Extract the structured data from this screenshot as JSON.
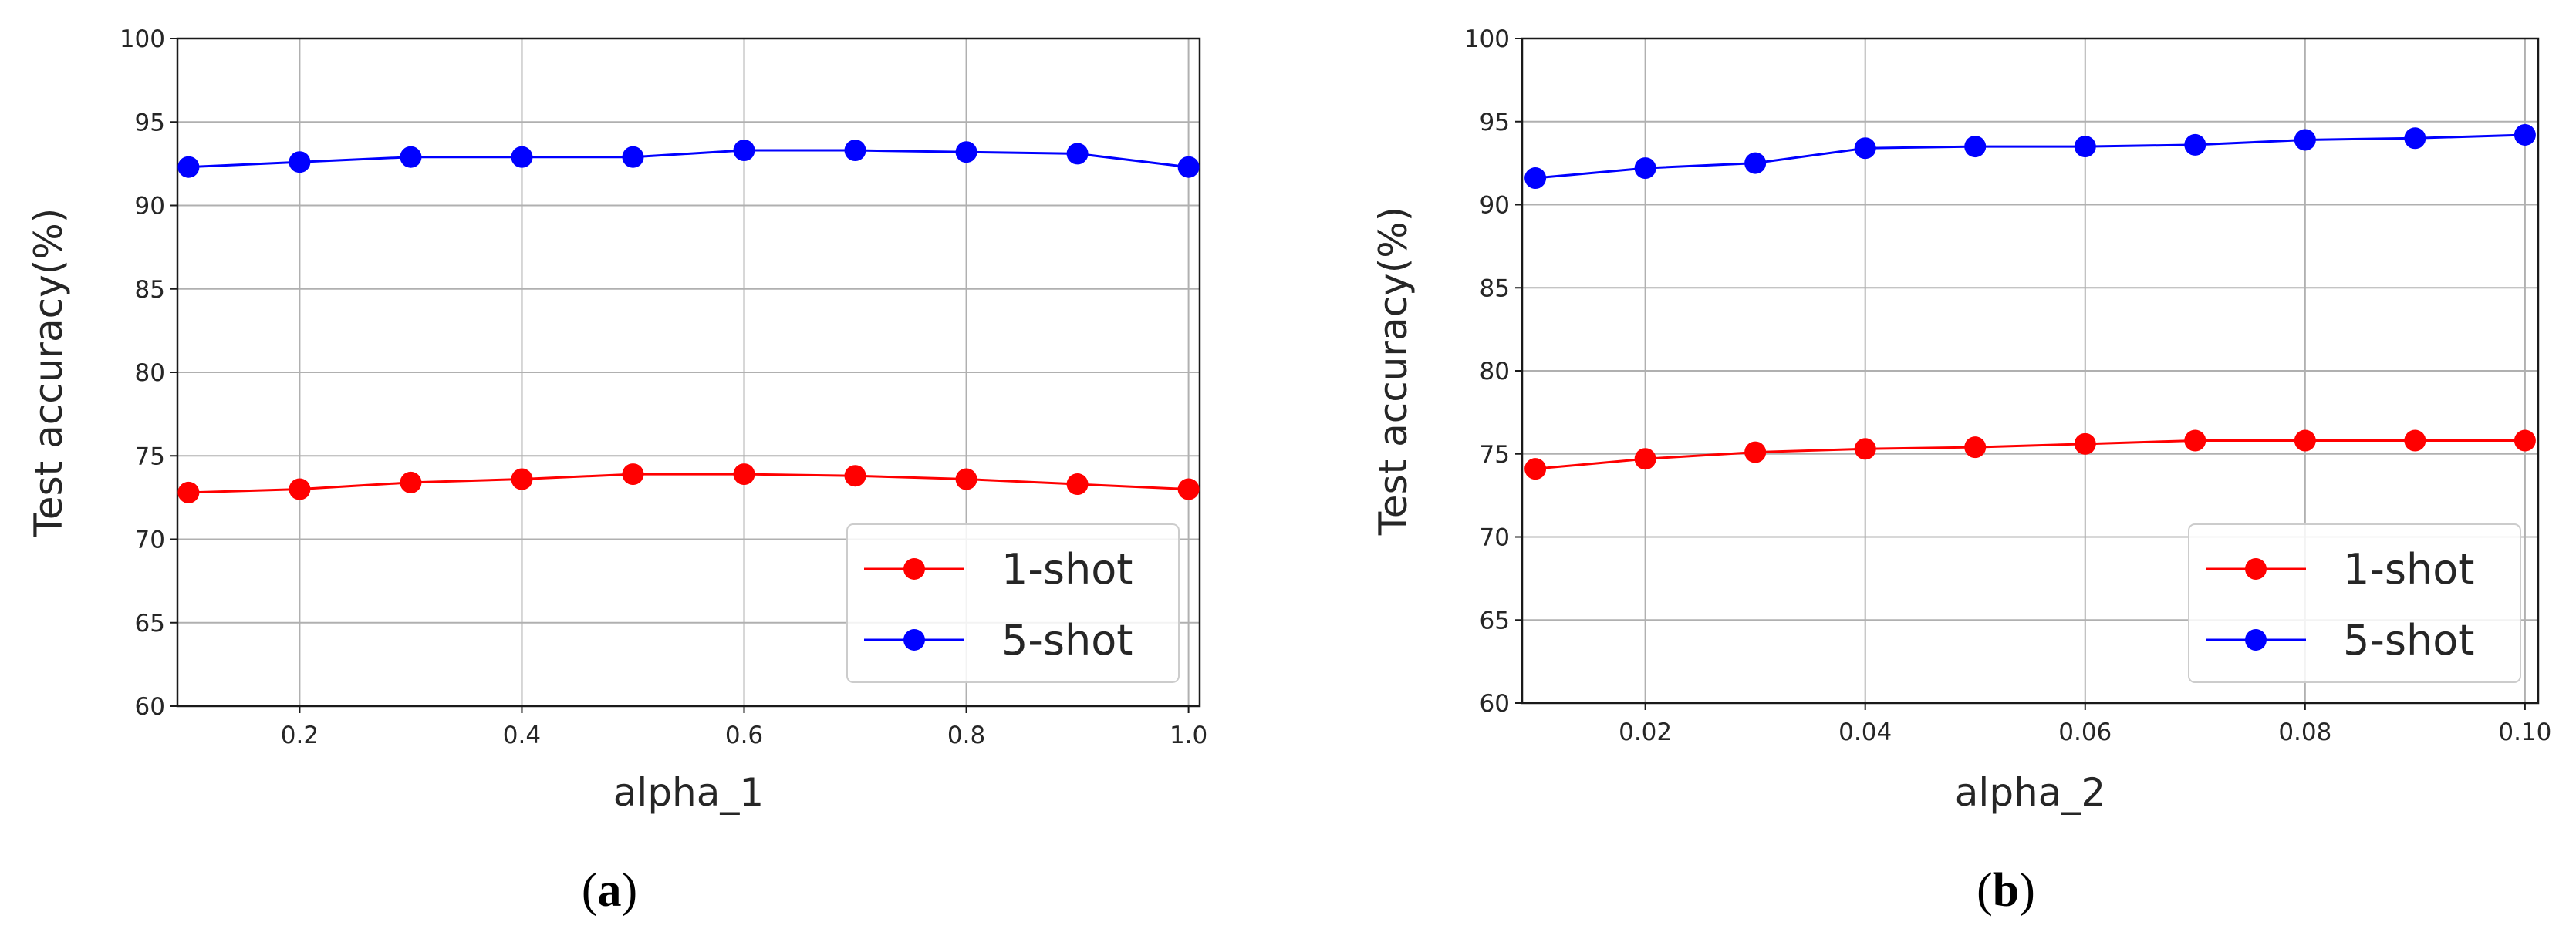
{
  "chart_data": [
    {
      "type": "line",
      "caption_letter": "a",
      "xlabel": "alpha_1",
      "ylabel": "Test accuracy(%)",
      "xlim": [
        0.09,
        1.01
      ],
      "ylim": [
        60,
        100
      ],
      "xticks": [
        0.2,
        0.4,
        0.6,
        0.8,
        1.0
      ],
      "xtick_labels": [
        "0.2",
        "0.4",
        "0.6",
        "0.8",
        "1.0"
      ],
      "yticks": [
        60,
        65,
        70,
        75,
        80,
        85,
        90,
        95,
        100
      ],
      "ytick_labels": [
        "60",
        "65",
        "70",
        "75",
        "80",
        "85",
        "90",
        "95",
        "100"
      ],
      "grid": true,
      "legend_position": "lower-right",
      "x": [
        0.1,
        0.2,
        0.3,
        0.4,
        0.5,
        0.6,
        0.7,
        0.8,
        0.9,
        1.0
      ],
      "series": [
        {
          "name": "1-shot",
          "color": "#ff0000",
          "values": [
            72.8,
            73.0,
            73.4,
            73.6,
            73.9,
            73.9,
            73.8,
            73.6,
            73.3,
            73.0
          ]
        },
        {
          "name": "5-shot",
          "color": "#0000ff",
          "values": [
            92.3,
            92.6,
            92.9,
            92.9,
            92.9,
            93.3,
            93.3,
            93.2,
            93.1,
            92.3
          ]
        }
      ]
    },
    {
      "type": "line",
      "caption_letter": "b",
      "xlabel": "alpha_2",
      "ylabel": "Test accuracy(%)",
      "xlim": [
        0.0088,
        0.1012
      ],
      "ylim": [
        60,
        100
      ],
      "xticks": [
        0.02,
        0.04,
        0.06,
        0.08,
        0.1
      ],
      "xtick_labels": [
        "0.02",
        "0.04",
        "0.06",
        "0.08",
        "0.10"
      ],
      "yticks": [
        60,
        65,
        70,
        75,
        80,
        85,
        90,
        95,
        100
      ],
      "ytick_labels": [
        "60",
        "65",
        "70",
        "75",
        "80",
        "85",
        "90",
        "95",
        "100"
      ],
      "grid": true,
      "legend_position": "lower-right",
      "x": [
        0.01,
        0.02,
        0.03,
        0.04,
        0.05,
        0.06,
        0.07,
        0.08,
        0.09,
        0.1
      ],
      "series": [
        {
          "name": "1-shot",
          "color": "#ff0000",
          "values": [
            74.1,
            74.7,
            75.1,
            75.3,
            75.4,
            75.6,
            75.8,
            75.8,
            75.8,
            75.8
          ]
        },
        {
          "name": "5-shot",
          "color": "#0000ff",
          "values": [
            91.6,
            92.2,
            92.5,
            93.4,
            93.5,
            93.5,
            93.6,
            93.9,
            94.0,
            94.2
          ]
        }
      ]
    }
  ]
}
